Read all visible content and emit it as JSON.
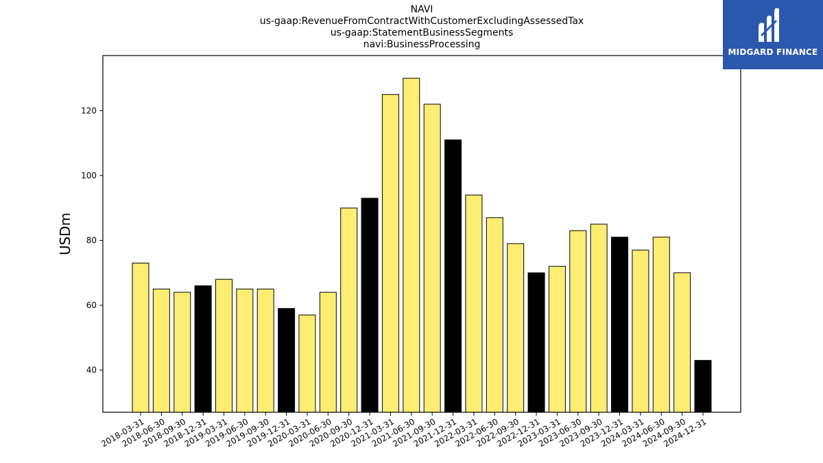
{
  "title": {
    "lines": [
      "NAVI",
      "us-gaap:RevenueFromContractWithCustomerExcludingAssessedTax",
      "us-gaap:StatementBusinessSegments",
      "navi:BusinessProcessing"
    ]
  },
  "logo": {
    "text": "MIDGARD FINANCE",
    "icon": "midgard-logo-icon",
    "color": "#2b57ad"
  },
  "chart_data": {
    "type": "bar",
    "ylabel": "USDm",
    "xlabel": "",
    "ylim": [
      27,
      137
    ],
    "yticks": [
      40,
      60,
      80,
      100,
      120
    ],
    "grid": false,
    "colors": {
      "default": "#fded72",
      "fiscal_year_end": "#000000",
      "edge": "#000000"
    },
    "categories": [
      "2018-03-31",
      "2018-06-30",
      "2018-09-30",
      "2018-12-31",
      "2019-03-31",
      "2019-06-30",
      "2019-09-30",
      "2019-12-31",
      "2020-03-31",
      "2020-06-30",
      "2020-09-30",
      "2020-12-31",
      "2021-03-31",
      "2021-06-30",
      "2021-09-30",
      "2021-12-31",
      "2022-03-31",
      "2022-06-30",
      "2022-09-30",
      "2022-12-31",
      "2023-03-31",
      "2023-06-30",
      "2023-09-30",
      "2023-12-31",
      "2024-03-31",
      "2024-06-30",
      "2024-09-30",
      "2024-12-31"
    ],
    "values": [
      73,
      65,
      64,
      66,
      68,
      65,
      65,
      59,
      57,
      64,
      90,
      93,
      125,
      130,
      122,
      111,
      94,
      87,
      79,
      70,
      72,
      83,
      85,
      81,
      77,
      81,
      70,
      43
    ]
  }
}
